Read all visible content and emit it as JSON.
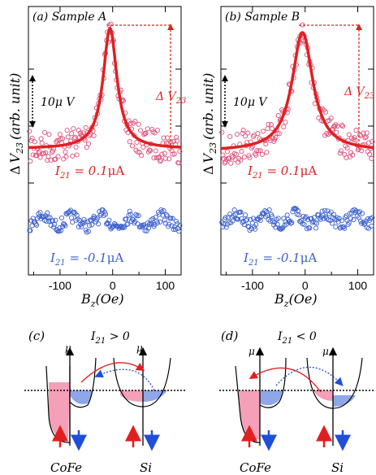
{
  "chart_data": [
    {
      "type": "scatter",
      "panel_label": "(a) Sample A",
      "ylabel_delta": "Δ",
      "ylabel_V": "V",
      "ylabel_sub": "23",
      "ylabel_unit": "(arb. unit)",
      "xlabel_main": "B",
      "xlabel_sub": "z",
      "xlabel_unit": "(Oe)",
      "xlim": [
        -160,
        130
      ],
      "xticks": [
        "-100",
        "0",
        "100"
      ],
      "scale_bar": "10μ V",
      "delta_label": "Δ V",
      "delta_sub": "23",
      "upper_series": {
        "name": "I21 = 0.1μA",
        "label_main": "I",
        "label_sub": "21",
        "label_rest": " = 0.1",
        "label_unit": "μA",
        "color": "#e0507a"
      },
      "fit": {
        "color": "#e02020",
        "center": -5,
        "width": 16,
        "baseline": 0.0,
        "peak": 1.0
      },
      "lower_series": {
        "name": "I21 = -0.1μA",
        "label_main": "I",
        "label_sub": "21",
        "label_rest": " = -0.1",
        "label_unit": "μA",
        "color": "#3a5fcd"
      }
    },
    {
      "type": "scatter",
      "panel_label": "(b) Sample B",
      "ylabel_delta": "Δ",
      "ylabel_V": "V",
      "ylabel_sub": "23",
      "ylabel_unit": "(arb. unit)",
      "xlabel_main": "B",
      "xlabel_sub": "z",
      "xlabel_unit": "(Oe)",
      "xlim": [
        -160,
        130
      ],
      "xticks": [
        "-100",
        "0",
        "100"
      ],
      "scale_bar": "10μ V",
      "delta_label": "Δ V",
      "delta_sub": "23",
      "upper_series": {
        "name": "I21 = 0.1μA",
        "label_main": "I",
        "label_sub": "21",
        "label_rest": " = 0.1",
        "label_unit": "μA",
        "color": "#e0507a"
      },
      "fit": {
        "color": "#e02020",
        "center": -5,
        "width": 24,
        "baseline": 0.0,
        "peak": 1.0
      },
      "lower_series": {
        "name": "I21 = -0.1μA",
        "label_main": "I",
        "label_sub": "21",
        "label_rest": " = -0.1",
        "label_unit": "μA",
        "color": "#3a5fcd"
      }
    }
  ],
  "diagrams": [
    {
      "label": "(c)",
      "current_main": "I",
      "current_sub": "21",
      "current_cond": " > 0",
      "mu": "μ",
      "left_material": "CoFe",
      "right_material": "Si"
    },
    {
      "label": "(d)",
      "current_main": "I",
      "current_sub": "21",
      "current_cond": " < 0",
      "mu": "μ",
      "left_material": "CoFe",
      "right_material": "Si"
    }
  ],
  "colors": {
    "pink_fill": "#f4a0b8",
    "blue_fill": "#8fa6e8",
    "red_arrow": "#e02020",
    "blue_arrow": "#1f4fd8"
  }
}
